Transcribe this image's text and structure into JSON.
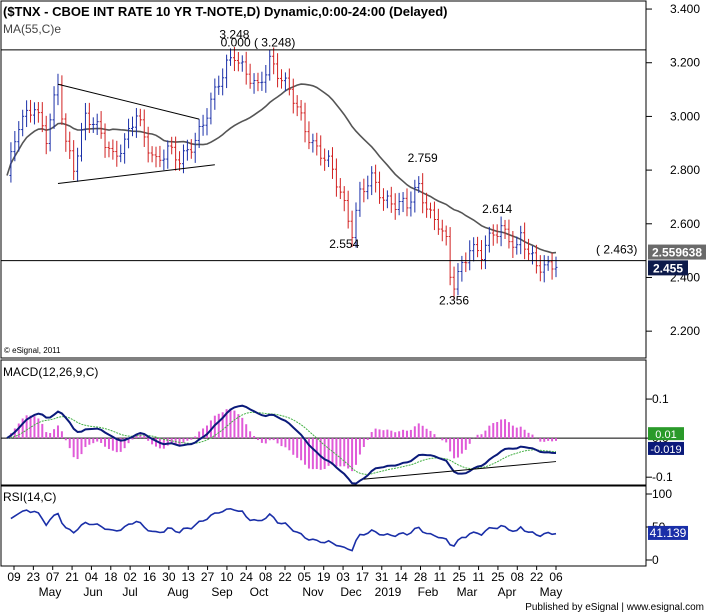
{
  "header": {
    "title": "($TNX - CBOE INT RATE 10 YR T-NOTE,D) Dynamic,0:00-24:00 (Delayed)",
    "ma_label": "MA(55,C)e",
    "copyright": "© eSignal, 2011"
  },
  "footer": {
    "published": "Published by eSignal | www.esignal.com"
  },
  "colors": {
    "up": "#1a2fa8",
    "down": "#d12020",
    "ma": "#555555",
    "trend": "#000000",
    "macd": "#0a1a7a",
    "signal": "#44b044",
    "hist": "#e05ad8",
    "rsi": "#1a2fa8"
  },
  "chart_data": [
    {
      "type": "line",
      "title": "$TNX - CBOE INT RATE 10 YR T-NOTE",
      "x_dates": [
        "09",
        "23",
        "07",
        "21",
        "04",
        "18",
        "02",
        "16",
        "30",
        "13",
        "27",
        "10",
        "24",
        "08",
        "22",
        "05",
        "19",
        "03",
        "17",
        "31",
        "14",
        "28",
        "11",
        "25",
        "11",
        "25",
        "08",
        "22",
        "06"
      ],
      "x_months": [
        "May",
        "Jun",
        "Jul",
        "Aug",
        "Sep",
        "Oct",
        "Nov",
        "Dec",
        "2019",
        "Feb",
        "Mar",
        "Apr",
        "May"
      ],
      "ylim": [
        2.1,
        3.43
      ],
      "y_ticks": [
        "3.400",
        "3.200",
        "3.000",
        "2.800",
        "2.600",
        "2.400",
        "2.200"
      ],
      "price_anchors": [
        {
          "i": 0,
          "v": 2.78
        },
        {
          "i": 3,
          "v": 2.96
        },
        {
          "i": 7,
          "v": 3.05
        },
        {
          "i": 10,
          "v": 2.92
        },
        {
          "i": 13,
          "v": 3.11
        },
        {
          "i": 15,
          "v": 2.9
        },
        {
          "i": 17,
          "v": 2.82
        },
        {
          "i": 20,
          "v": 3.0
        },
        {
          "i": 24,
          "v": 2.93
        },
        {
          "i": 27,
          "v": 2.86
        },
        {
          "i": 30,
          "v": 2.9
        },
        {
          "i": 33,
          "v": 3.0
        },
        {
          "i": 35,
          "v": 2.92
        },
        {
          "i": 38,
          "v": 2.84
        },
        {
          "i": 41,
          "v": 2.87
        },
        {
          "i": 44,
          "v": 2.83
        },
        {
          "i": 47,
          "v": 2.9
        },
        {
          "i": 50,
          "v": 2.97
        },
        {
          "i": 53,
          "v": 3.08
        },
        {
          "i": 56,
          "v": 3.2
        },
        {
          "i": 58,
          "v": 3.24
        },
        {
          "i": 61,
          "v": 3.15
        },
        {
          "i": 64,
          "v": 3.1
        },
        {
          "i": 67,
          "v": 3.22
        },
        {
          "i": 70,
          "v": 3.14
        },
        {
          "i": 73,
          "v": 3.06
        },
        {
          "i": 76,
          "v": 2.96
        },
        {
          "i": 79,
          "v": 2.88
        },
        {
          "i": 82,
          "v": 2.82
        },
        {
          "i": 85,
          "v": 2.72
        },
        {
          "i": 88,
          "v": 2.58
        },
        {
          "i": 90,
          "v": 2.71
        },
        {
          "i": 93,
          "v": 2.76
        },
        {
          "i": 96,
          "v": 2.7
        },
        {
          "i": 99,
          "v": 2.68
        },
        {
          "i": 102,
          "v": 2.66
        },
        {
          "i": 105,
          "v": 2.74
        },
        {
          "i": 108,
          "v": 2.64
        },
        {
          "i": 110,
          "v": 2.6
        },
        {
          "i": 112,
          "v": 2.52
        },
        {
          "i": 113,
          "v": 2.4
        },
        {
          "i": 114,
          "v": 2.37
        },
        {
          "i": 116,
          "v": 2.45
        },
        {
          "i": 118,
          "v": 2.52
        },
        {
          "i": 121,
          "v": 2.48
        },
        {
          "i": 124,
          "v": 2.56
        },
        {
          "i": 126,
          "v": 2.59
        },
        {
          "i": 128,
          "v": 2.56
        },
        {
          "i": 130,
          "v": 2.5
        },
        {
          "i": 131,
          "v": 2.55
        },
        {
          "i": 133,
          "v": 2.48
        },
        {
          "i": 135,
          "v": 2.45
        }
      ],
      "annotations": [
        {
          "text": "3.248",
          "i": 58,
          "v": 3.29
        },
        {
          "text": "0.000 ( 3.248)",
          "i": 64,
          "v": 3.26
        },
        {
          "text": "2.759",
          "i": 106,
          "v": 2.83
        },
        {
          "text": "2.614",
          "i": 125,
          "v": 2.64
        },
        {
          "text": "2.554",
          "i": 86,
          "v": 2.51
        },
        {
          "text": "2.356",
          "i": 114,
          "v": 2.3
        },
        {
          "text": "( 2.463)",
          "i": 142,
          "v": 2.49
        }
      ],
      "hline": 2.463,
      "triangle_upper": [
        {
          "i": 13,
          "v": 3.12
        },
        {
          "i": 49,
          "v": 2.99
        }
      ],
      "triangle_lower": [
        {
          "i": 13,
          "v": 2.75
        },
        {
          "i": 53,
          "v": 2.82
        }
      ],
      "hline_top": 3.248,
      "last_values": {
        "ma": "2.559638",
        "price": "2.455"
      }
    },
    {
      "type": "line",
      "title": "MACD(12,26,9,C)",
      "ylim": [
        -0.12,
        0.2
      ],
      "y_ticks": [
        "0.1",
        "0.0",
        "-0.1"
      ],
      "value_labels": [
        "0.01",
        "-0.019"
      ],
      "trendline": [
        {
          "i": 91,
          "v": -0.105
        },
        {
          "i": 140,
          "v": -0.06
        }
      ]
    },
    {
      "type": "line",
      "title": "RSI(14,C)",
      "ylim": [
        0,
        100
      ],
      "y_ticks": [
        "100",
        "50",
        "0"
      ],
      "value_label": "41.139"
    }
  ]
}
